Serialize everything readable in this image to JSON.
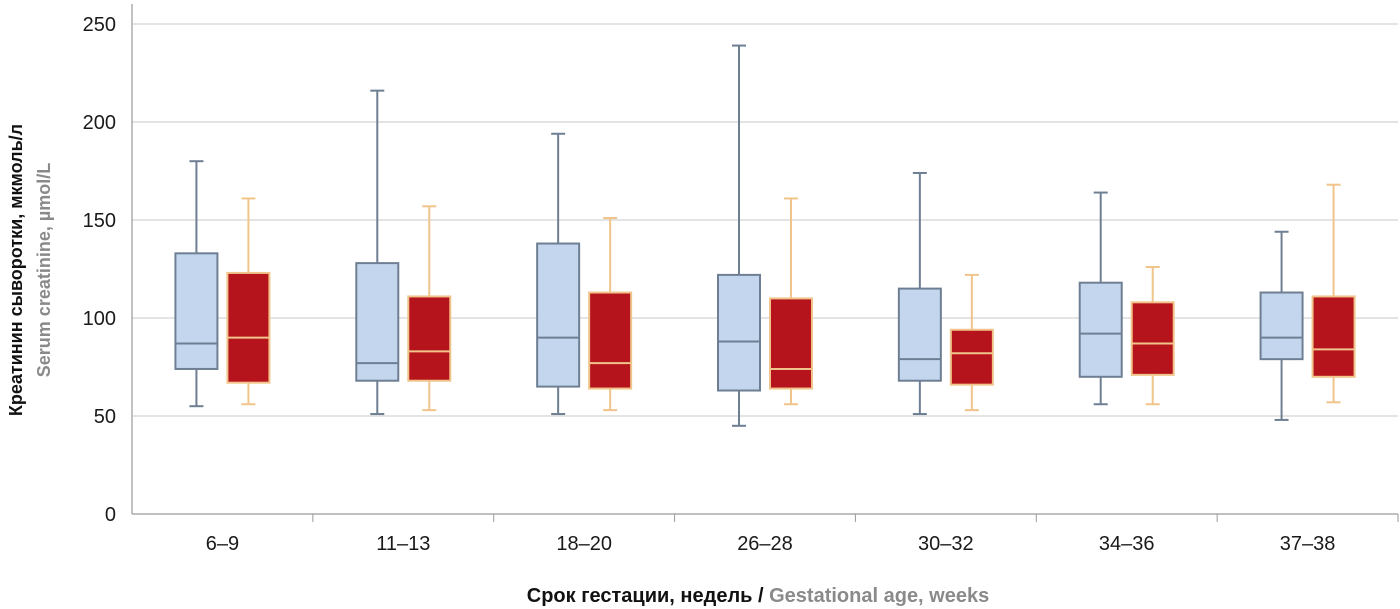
{
  "chart_data": {
    "type": "box",
    "title": "",
    "ylabel": {
      "primary": "Креатинин сыворотки, мкмоль/л",
      "secondary": "Serum creatinine, µmol/L"
    },
    "xlabel": {
      "primary": "Срок гестации, недель",
      "separator": " / ",
      "secondary": "Gestational age, weeks"
    },
    "ylim": [
      0,
      250
    ],
    "yticks": [
      "0",
      "50",
      "100",
      "150",
      "200",
      "250"
    ],
    "grid": true,
    "categories": [
      "6–9",
      "11–13",
      "18–20",
      "26–28",
      "30–32",
      "34–36",
      "37–38"
    ],
    "series": [
      {
        "fill": "#c3d6ee",
        "stroke": "#6f7f93",
        "boxes": [
          {
            "min": 55,
            "q1": 74,
            "median": 87,
            "q3": 133,
            "max": 180
          },
          {
            "min": 51,
            "q1": 68,
            "median": 77,
            "q3": 128,
            "max": 216
          },
          {
            "min": 51,
            "q1": 65,
            "median": 90,
            "q3": 138,
            "max": 194
          },
          {
            "min": 45,
            "q1": 63,
            "median": 88,
            "q3": 122,
            "max": 239
          },
          {
            "min": 51,
            "q1": 68,
            "median": 79,
            "q3": 115,
            "max": 174
          },
          {
            "min": 56,
            "q1": 70,
            "median": 92,
            "q3": 118,
            "max": 164
          },
          {
            "min": 48,
            "q1": 79,
            "median": 90,
            "q3": 113,
            "max": 144
          }
        ]
      },
      {
        "fill": "#b5141c",
        "stroke": "#f0c48a",
        "boxes": [
          {
            "min": 56,
            "q1": 67,
            "median": 90,
            "q3": 123,
            "max": 161
          },
          {
            "min": 53,
            "q1": 68,
            "median": 83,
            "q3": 111,
            "max": 157
          },
          {
            "min": 53,
            "q1": 64,
            "median": 77,
            "q3": 113,
            "max": 151
          },
          {
            "min": 56,
            "q1": 64,
            "median": 74,
            "q3": 110,
            "max": 161
          },
          {
            "min": 53,
            "q1": 66,
            "median": 82,
            "q3": 94,
            "max": 122
          },
          {
            "min": 56,
            "q1": 71,
            "median": 87,
            "q3": 108,
            "max": 126
          },
          {
            "min": 57,
            "q1": 70,
            "median": 84,
            "q3": 111,
            "max": 168
          }
        ]
      }
    ]
  }
}
